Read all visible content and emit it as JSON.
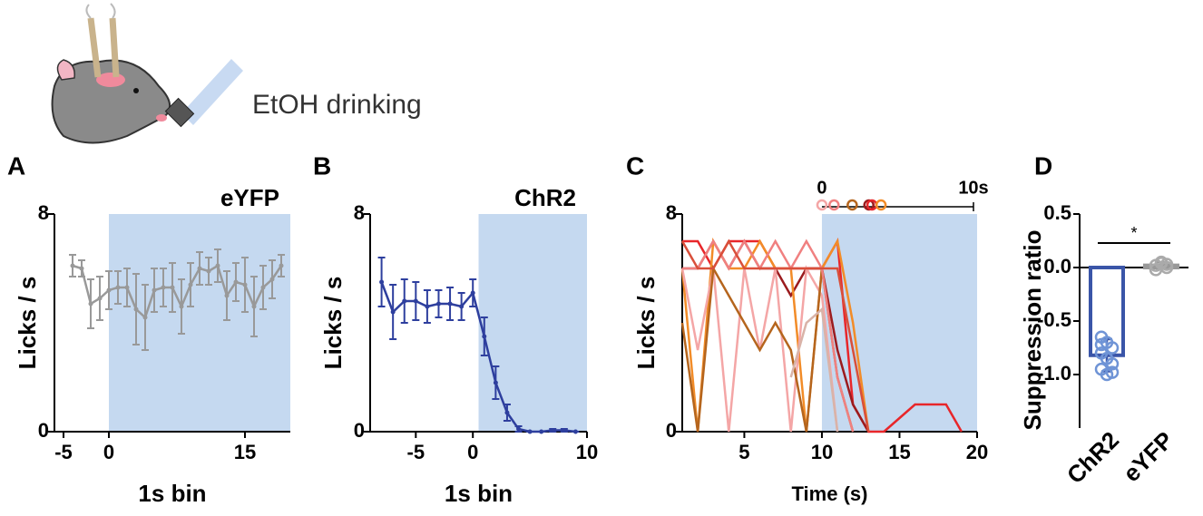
{
  "header": {
    "text": "EtOH drinking"
  },
  "chart_data": [
    {
      "type": "line",
      "label": "A",
      "title": "eYFP",
      "xlabel": "1s bin",
      "ylabel": "Licks / s",
      "xlim": [
        -6,
        20
      ],
      "xticks": [
        -5,
        0,
        15
      ],
      "ylim": [
        0,
        8
      ],
      "yticks": [
        0,
        8
      ],
      "shade": [
        0,
        20
      ],
      "color": "#999999",
      "x": [
        -4,
        -3,
        -2,
        -1,
        0,
        1,
        2,
        3,
        4,
        5,
        6,
        7,
        8,
        9,
        10,
        11,
        12,
        13,
        14,
        15,
        16,
        17,
        18,
        19
      ],
      "values": [
        6.1,
        6.0,
        4.7,
        4.9,
        5.2,
        5.3,
        5.3,
        4.5,
        4.2,
        5.2,
        5.3,
        5.3,
        4.6,
        5.4,
        6.0,
        5.9,
        6.1,
        5.0,
        5.5,
        5.4,
        4.6,
        5.3,
        5.6,
        6.1
      ],
      "errors": [
        0.4,
        0.3,
        0.9,
        0.8,
        0.7,
        0.6,
        0.7,
        1.3,
        1.2,
        0.8,
        0.7,
        0.9,
        1.0,
        0.8,
        0.6,
        0.5,
        0.6,
        0.9,
        0.7,
        1.0,
        1.1,
        0.8,
        0.7,
        0.4
      ]
    },
    {
      "type": "line",
      "label": "B",
      "title": "ChR2",
      "xlabel": "1s bin",
      "ylabel": "Licks / s",
      "xlim": [
        -9,
        10
      ],
      "xticks": [
        -5,
        0,
        10
      ],
      "ylim": [
        0,
        8
      ],
      "yticks": [
        0,
        8
      ],
      "shade": [
        0.5,
        10
      ],
      "color": "#2e3f9e",
      "x": [
        -8,
        -7,
        -6,
        -5,
        -4,
        -3,
        -2,
        -1,
        0,
        1,
        2,
        3,
        4,
        5,
        6,
        7,
        8,
        9
      ],
      "values": [
        5.5,
        4.4,
        4.8,
        4.8,
        4.6,
        4.7,
        4.7,
        4.6,
        5.1,
        3.5,
        1.8,
        0.7,
        0.1,
        0,
        0,
        0.05,
        0.05,
        0
      ],
      "errors": [
        0.9,
        1.0,
        0.8,
        0.7,
        0.6,
        0.5,
        0.6,
        0.5,
        0.5,
        0.7,
        0.6,
        0.3,
        0.1,
        0,
        0,
        0.05,
        0.05,
        0
      ]
    },
    {
      "type": "multiline",
      "label": "C",
      "xlabel": "Time (s)",
      "ylabel": "Licks / s",
      "xlim": [
        1,
        20
      ],
      "xticks": [
        5,
        10,
        15,
        20
      ],
      "ylim": [
        0,
        8
      ],
      "yticks": [
        0,
        8
      ],
      "shade": [
        10,
        20
      ],
      "x": [
        1,
        2,
        3,
        4,
        5,
        6,
        7,
        8,
        9,
        10,
        11,
        12,
        13,
        14,
        15,
        16,
        17,
        18,
        19
      ],
      "series": [
        {
          "color": "#e8262a",
          "values": [
            7,
            7,
            6,
            7,
            7,
            7,
            6,
            6,
            6,
            6,
            7,
            1,
            0,
            0,
            0.5,
            1,
            1,
            1,
            0
          ]
        },
        {
          "color": "#9b1b1e",
          "values": [
            6,
            6,
            7,
            6,
            7,
            6,
            6,
            5,
            6,
            6,
            3,
            1,
            0,
            null,
            null,
            null,
            null,
            null,
            null
          ]
        },
        {
          "color": "#f28c28",
          "values": [
            6,
            0,
            7,
            6,
            6,
            7,
            6,
            6,
            0,
            6,
            7,
            4,
            0,
            null,
            null,
            null,
            null,
            null,
            null
          ]
        },
        {
          "color": "#f4a6a6",
          "values": [
            6,
            3,
            6,
            0,
            6,
            3,
            6,
            0,
            6,
            5,
            0,
            null,
            null,
            null,
            null,
            null,
            null,
            null,
            null
          ]
        },
        {
          "color": "#b5651d",
          "values": [
            4,
            0,
            6,
            5,
            4,
            3,
            4,
            3,
            0,
            6,
            2,
            0,
            null,
            null,
            null,
            null,
            null,
            null,
            null
          ]
        },
        {
          "color": "#f08080",
          "values": [
            6,
            6,
            7,
            6,
            7,
            6,
            7,
            6,
            7,
            6,
            2,
            0,
            null,
            null,
            null,
            null,
            null,
            null,
            null
          ]
        },
        {
          "color": "#d94f3a",
          "values": [
            7,
            6,
            6,
            7,
            6,
            6,
            6,
            6,
            6,
            6,
            6,
            3,
            0,
            null,
            null,
            null,
            null,
            null,
            null
          ]
        },
        {
          "color": "#d9b3a8",
          "values": [
            null,
            null,
            null,
            null,
            null,
            null,
            null,
            2,
            4,
            4.5,
            0,
            null,
            null,
            null,
            null,
            null,
            null,
            null,
            null
          ]
        }
      ],
      "inset": {
        "start_label": "0",
        "end_label": "10s",
        "xlim": [
          0,
          10
        ],
        "events": [
          {
            "x": 0,
            "color": "#f4a6a6"
          },
          {
            "x": 0.8,
            "color": "#f08080"
          },
          {
            "x": 2.0,
            "color": "#b5651d"
          },
          {
            "x": 3.1,
            "color": "#9b1b1e"
          },
          {
            "x": 3.3,
            "color": "#e8262a"
          },
          {
            "x": 3.9,
            "color": "#f28c28"
          }
        ]
      }
    },
    {
      "type": "bar",
      "label": "D",
      "ylabel": "Suppression ratio",
      "ylim": [
        -1.5,
        0.5
      ],
      "yticks": [
        0.5,
        {
          "value": 0,
          "label": "0.0"
        },
        -0.5,
        {
          "value": -1,
          "label": "-1.0"
        }
      ],
      "categories": [
        "ChR2",
        "eYFP"
      ],
      "values": [
        -0.82,
        0.02
      ],
      "errors": [
        0.15,
        0.03
      ],
      "colors": [
        "#3a55a8",
        "#999999"
      ],
      "point_colors": [
        "#6f94d6",
        "#aaaaaa"
      ],
      "points": [
        [
          -0.65,
          -0.7,
          -0.75,
          -0.8,
          -0.85,
          -0.9,
          -0.95,
          -1.0,
          -0.98,
          -0.72
        ],
        [
          0.02,
          0.05,
          0,
          -0.02,
          0.04,
          0.03
        ]
      ],
      "significance": "*"
    }
  ]
}
